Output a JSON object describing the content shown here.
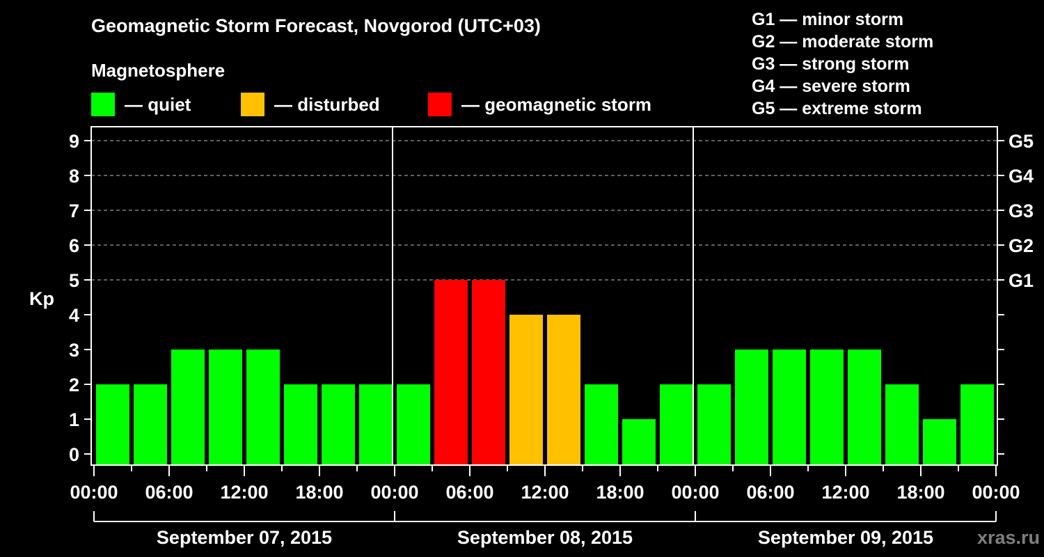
{
  "header": {
    "title": "Geomagnetic Storm Forecast, Novgorod (UTC+03)",
    "magnetosphere_label": "Magnetosphere"
  },
  "legend": [
    {
      "label": "— quiet",
      "color": "#00ff00"
    },
    {
      "label": "— disturbed",
      "color": "#ffc000"
    },
    {
      "label": "— geomagnetic storm",
      "color": "#ff0000"
    }
  ],
  "g_scale": [
    "G1 — minor storm",
    "G2 — moderate storm",
    "G3 — strong storm",
    "G4 — severe storm",
    "G5 — extreme storm"
  ],
  "watermark": "xras.ru",
  "chart_data": {
    "type": "bar",
    "title": "Geomagnetic Storm Forecast, Novgorod (UTC+03)",
    "ylabel": "Kp",
    "xlabel": "",
    "ylim": [
      0,
      9
    ],
    "yticks": [
      0,
      1,
      2,
      3,
      4,
      5,
      6,
      7,
      8,
      9
    ],
    "right_axis_labels": [
      {
        "kp": 5,
        "label": "G1"
      },
      {
        "kp": 6,
        "label": "G2"
      },
      {
        "kp": 7,
        "label": "G3"
      },
      {
        "kp": 8,
        "label": "G4"
      },
      {
        "kp": 9,
        "label": "G5"
      }
    ],
    "grid": {
      "dashed_at": [
        5,
        6,
        7,
        8,
        9
      ]
    },
    "xtick_labels": [
      "00:00",
      "06:00",
      "12:00",
      "18:00",
      "00:00",
      "06:00",
      "12:00",
      "18:00",
      "00:00",
      "06:00",
      "12:00",
      "18:00",
      "00:00"
    ],
    "days": [
      {
        "label": "September 07, 2015",
        "values": [
          2,
          2,
          3,
          3,
          3,
          2,
          2,
          2
        ]
      },
      {
        "label": "September 08, 2015",
        "values": [
          2,
          5,
          5,
          4,
          4,
          2,
          1,
          2
        ]
      },
      {
        "label": "September 09, 2015",
        "values": [
          2,
          3,
          3,
          3,
          3,
          2,
          1,
          2
        ]
      }
    ],
    "interval_hours": 3,
    "color_rules": {
      "quiet_max": 3,
      "disturbed_max": 4,
      "quiet": "#00ff00",
      "disturbed": "#ffc000",
      "storm": "#ff0000"
    },
    "legend_position": "top"
  }
}
